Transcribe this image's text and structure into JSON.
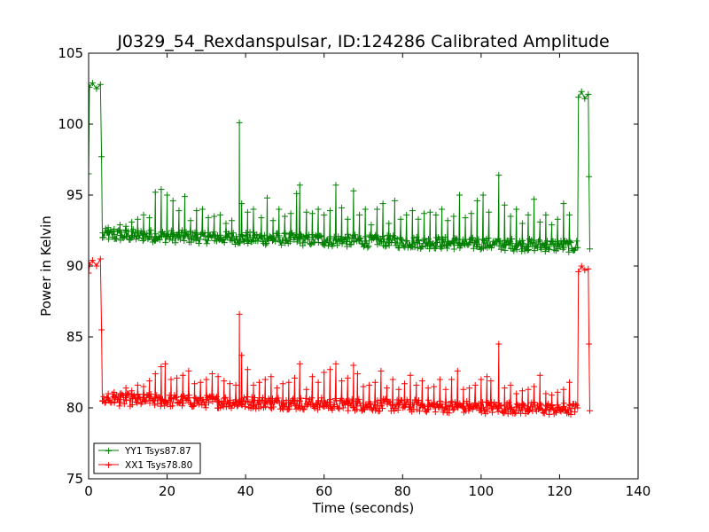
{
  "chart_data": {
    "type": "line",
    "title": "J0329_54_Rexdanspulsar, ID:124286 Calibrated Amplitude",
    "xlabel": "Time (seconds)",
    "ylabel": "Power in Kelvin",
    "xlim": [
      0,
      140
    ],
    "ylim": [
      75,
      105
    ],
    "xticks": [
      0,
      20,
      40,
      60,
      80,
      100,
      120,
      140
    ],
    "yticks": [
      75,
      80,
      85,
      90,
      95,
      100,
      105
    ],
    "legend_position": "lower-left",
    "grid": false,
    "marker": "+",
    "series": [
      {
        "name": "YY1 Tsys87.87",
        "color": "#008000",
        "cal_on": [
          [
            0.2,
            102.6
          ],
          [
            1.0,
            102.9
          ],
          [
            2.0,
            102.5
          ],
          [
            3.0,
            102.8
          ]
        ],
        "cal_on_end": [
          [
            124.8,
            101.9
          ],
          [
            125.6,
            102.3
          ],
          [
            126.4,
            101.8
          ],
          [
            127.3,
            102.1
          ]
        ],
        "transition_points": [
          [
            0.0,
            96.5
          ],
          [
            3.3,
            97.7
          ],
          [
            3.5,
            92.0
          ],
          [
            124.6,
            91.3
          ],
          [
            127.5,
            96.3
          ],
          [
            127.7,
            91.2
          ]
        ],
        "baseline_start": 92.2,
        "baseline_end": 91.4,
        "spikes": [
          [
            5.0,
            92.7
          ],
          [
            6.5,
            92.6
          ],
          [
            8.0,
            92.9
          ],
          [
            9.5,
            92.8
          ],
          [
            11.0,
            93.1
          ],
          [
            12.5,
            93.3
          ],
          [
            14.0,
            93.6
          ],
          [
            15.5,
            93.4
          ],
          [
            17.0,
            95.2
          ],
          [
            18.5,
            95.4
          ],
          [
            20.0,
            95.0
          ],
          [
            21.5,
            94.6
          ],
          [
            23.0,
            93.9
          ],
          [
            24.5,
            94.9
          ],
          [
            26.0,
            93.2
          ],
          [
            27.5,
            93.9
          ],
          [
            29.0,
            94.0
          ],
          [
            30.5,
            93.4
          ],
          [
            32.0,
            93.5
          ],
          [
            33.5,
            93.6
          ],
          [
            35.0,
            93.0
          ],
          [
            36.5,
            93.2
          ],
          [
            38.4,
            100.1
          ],
          [
            39.0,
            94.4
          ],
          [
            40.5,
            93.8
          ],
          [
            42.0,
            94.0
          ],
          [
            44.0,
            93.4
          ],
          [
            45.5,
            94.8
          ],
          [
            47.0,
            93.2
          ],
          [
            48.5,
            94.0
          ],
          [
            50.0,
            93.5
          ],
          [
            51.5,
            93.7
          ],
          [
            53.0,
            95.1
          ],
          [
            53.8,
            95.7
          ],
          [
            55.5,
            93.8
          ],
          [
            57.0,
            93.7
          ],
          [
            58.5,
            94.0
          ],
          [
            60.0,
            93.6
          ],
          [
            61.5,
            93.9
          ],
          [
            63.0,
            95.7
          ],
          [
            64.5,
            94.1
          ],
          [
            66.0,
            93.3
          ],
          [
            67.5,
            95.3
          ],
          [
            69.0,
            93.6
          ],
          [
            70.5,
            94.0
          ],
          [
            72.0,
            92.9
          ],
          [
            73.5,
            94.0
          ],
          [
            75.0,
            94.4
          ],
          [
            76.5,
            93.0
          ],
          [
            78.0,
            94.6
          ],
          [
            79.5,
            93.3
          ],
          [
            81.0,
            93.6
          ],
          [
            82.5,
            93.9
          ],
          [
            84.0,
            93.3
          ],
          [
            85.5,
            93.7
          ],
          [
            87.0,
            93.8
          ],
          [
            88.5,
            93.6
          ],
          [
            90.0,
            94.0
          ],
          [
            91.5,
            93.2
          ],
          [
            93.0,
            93.5
          ],
          [
            94.5,
            95.0
          ],
          [
            96.0,
            93.4
          ],
          [
            97.5,
            93.7
          ],
          [
            99.0,
            94.6
          ],
          [
            100.5,
            95.0
          ],
          [
            102.0,
            93.8
          ],
          [
            104.5,
            96.4
          ],
          [
            106.0,
            94.3
          ],
          [
            107.5,
            93.5
          ],
          [
            109.0,
            94.0
          ],
          [
            110.5,
            93.0
          ],
          [
            112.0,
            93.6
          ],
          [
            113.5,
            94.7
          ],
          [
            115.0,
            93.1
          ],
          [
            116.5,
            93.6
          ],
          [
            118.0,
            92.9
          ],
          [
            119.5,
            93.3
          ],
          [
            121.0,
            94.4
          ],
          [
            122.5,
            93.6
          ]
        ]
      },
      {
        "name": "XX1 Tsys78.80",
        "color": "#ff0000",
        "cal_on": [
          [
            0.2,
            90.1
          ],
          [
            1.0,
            90.4
          ],
          [
            2.0,
            90.0
          ],
          [
            3.0,
            90.5
          ]
        ],
        "cal_on_end": [
          [
            124.8,
            89.6
          ],
          [
            125.6,
            90.0
          ],
          [
            126.4,
            89.7
          ],
          [
            127.3,
            89.8
          ]
        ],
        "transition_points": [
          [
            0.0,
            89.5
          ],
          [
            3.3,
            85.5
          ],
          [
            3.5,
            80.5
          ],
          [
            124.6,
            80.0
          ],
          [
            127.5,
            84.5
          ],
          [
            127.7,
            79.8
          ]
        ],
        "baseline_start": 80.6,
        "baseline_end": 79.9,
        "spikes": [
          [
            5.0,
            81.0
          ],
          [
            6.5,
            81.1
          ],
          [
            8.0,
            81.0
          ],
          [
            9.5,
            81.4
          ],
          [
            11.0,
            81.2
          ],
          [
            12.5,
            81.6
          ],
          [
            14.0,
            81.5
          ],
          [
            15.5,
            81.9
          ],
          [
            17.0,
            82.4
          ],
          [
            18.5,
            82.9
          ],
          [
            19.5,
            83.1
          ],
          [
            21.0,
            82.0
          ],
          [
            22.5,
            82.1
          ],
          [
            24.0,
            82.3
          ],
          [
            25.5,
            82.6
          ],
          [
            27.0,
            81.7
          ],
          [
            28.5,
            81.8
          ],
          [
            30.0,
            82.0
          ],
          [
            31.5,
            82.4
          ],
          [
            33.0,
            82.2
          ],
          [
            34.5,
            81.9
          ],
          [
            36.0,
            81.7
          ],
          [
            37.5,
            81.6
          ],
          [
            38.4,
            86.6
          ],
          [
            39.0,
            83.7
          ],
          [
            40.5,
            82.7
          ],
          [
            42.0,
            81.6
          ],
          [
            43.5,
            81.8
          ],
          [
            45.0,
            82.0
          ],
          [
            46.5,
            82.2
          ],
          [
            48.0,
            81.4
          ],
          [
            49.5,
            81.7
          ],
          [
            51.0,
            81.8
          ],
          [
            52.5,
            82.1
          ],
          [
            53.8,
            83.1
          ],
          [
            55.5,
            81.3
          ],
          [
            57.0,
            82.2
          ],
          [
            58.5,
            81.8
          ],
          [
            60.0,
            82.5
          ],
          [
            61.5,
            82.7
          ],
          [
            63.0,
            83.1
          ],
          [
            64.5,
            81.9
          ],
          [
            66.0,
            82.1
          ],
          [
            67.5,
            83.0
          ],
          [
            68.5,
            82.4
          ],
          [
            70.0,
            81.5
          ],
          [
            71.5,
            81.6
          ],
          [
            73.0,
            81.8
          ],
          [
            74.5,
            82.6
          ],
          [
            76.0,
            81.4
          ],
          [
            77.5,
            82.0
          ],
          [
            79.0,
            81.3
          ],
          [
            80.5,
            81.7
          ],
          [
            82.0,
            82.3
          ],
          [
            83.5,
            81.6
          ],
          [
            85.0,
            81.9
          ],
          [
            86.5,
            81.4
          ],
          [
            88.0,
            81.5
          ],
          [
            89.5,
            82.0
          ],
          [
            91.0,
            81.3
          ],
          [
            92.5,
            82.0
          ],
          [
            94.0,
            82.6
          ],
          [
            95.5,
            81.3
          ],
          [
            97.0,
            81.4
          ],
          [
            98.5,
            81.6
          ],
          [
            100.0,
            82.0
          ],
          [
            101.5,
            82.2
          ],
          [
            102.5,
            81.9
          ],
          [
            104.5,
            84.5
          ],
          [
            106.0,
            81.4
          ],
          [
            107.5,
            81.6
          ],
          [
            109.0,
            81.0
          ],
          [
            110.5,
            81.2
          ],
          [
            112.0,
            81.3
          ],
          [
            113.5,
            81.5
          ],
          [
            115.0,
            82.3
          ],
          [
            116.5,
            81.0
          ],
          [
            118.0,
            80.9
          ],
          [
            119.5,
            81.1
          ],
          [
            121.0,
            81.3
          ],
          [
            122.5,
            81.8
          ]
        ]
      }
    ]
  }
}
